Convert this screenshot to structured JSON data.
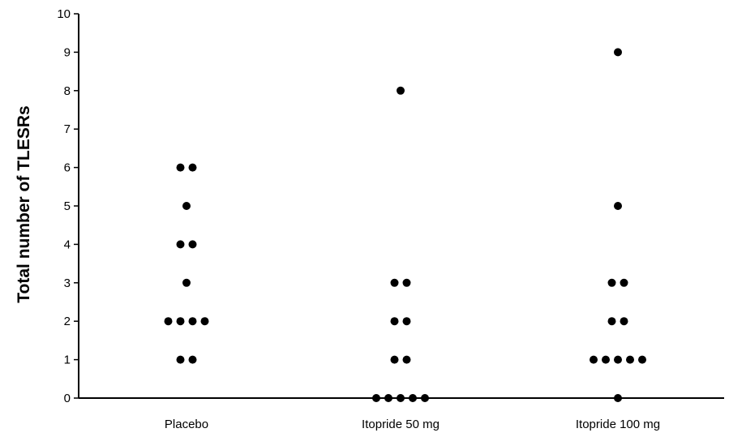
{
  "chart_data": {
    "type": "scatter",
    "title": "",
    "xlabel": "",
    "ylabel": "Total number of TLESRs",
    "ylim": [
      0,
      10
    ],
    "yticks": [
      0,
      1,
      2,
      3,
      4,
      5,
      6,
      7,
      8,
      9,
      10
    ],
    "grid": false,
    "legend": "none",
    "point_color": "#000000",
    "categories": [
      "Placebo",
      "Itopride 50 mg",
      "Itopride 100 mg"
    ],
    "series": [
      {
        "category": "Placebo",
        "values": [
          1,
          1,
          2,
          2,
          2,
          2,
          3,
          4,
          4,
          5,
          6,
          6
        ]
      },
      {
        "category": "Itopride 50 mg",
        "values": [
          0,
          0,
          0,
          0,
          0,
          1,
          1,
          2,
          2,
          3,
          3,
          8
        ]
      },
      {
        "category": "Itopride 100 mg",
        "values": [
          0,
          1,
          1,
          1,
          1,
          1,
          2,
          2,
          3,
          3,
          5,
          9
        ]
      }
    ]
  }
}
